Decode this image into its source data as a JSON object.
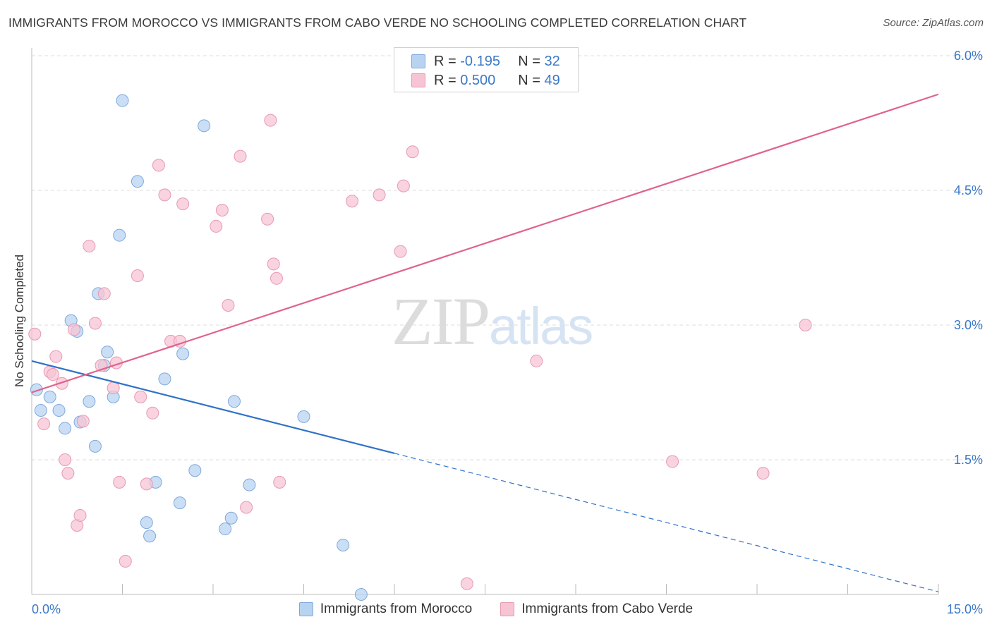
{
  "title": "IMMIGRANTS FROM MOROCCO VS IMMIGRANTS FROM CABO VERDE NO SCHOOLING COMPLETED CORRELATION CHART",
  "source": "Source: ZipAtlas.com",
  "watermark": {
    "zip": "ZIP",
    "atlas": "atlas"
  },
  "legend": {
    "morocco": {
      "r_label": "R = ",
      "r_value": "-0.195",
      "n_label": "N = ",
      "n_value": "32"
    },
    "cabo": {
      "r_label": "R = ",
      "r_value": "0.500",
      "n_label": "N = ",
      "n_value": "49"
    }
  },
  "colors": {
    "morocco_fill": "#b8d3f1",
    "morocco_stroke": "#7fa9db",
    "morocco_line": "#2f72c8",
    "cabo_fill": "#f7c4d4",
    "cabo_stroke": "#e79ab2",
    "cabo_line": "#e0628d",
    "tick_text": "#3a78c9",
    "grid": "#dddddd"
  },
  "chart_data": {
    "type": "scatter",
    "title": "IMMIGRANTS FROM MOROCCO VS IMMIGRANTS FROM CABO VERDE NO SCHOOLING COMPLETED CORRELATION CHART",
    "xlabel": "",
    "ylabel": "No Schooling Completed",
    "xlim": [
      0,
      15
    ],
    "ylim": [
      0,
      6
    ],
    "x_tick_labels": [
      "0.0%",
      "15.0%"
    ],
    "y_ticks": [
      1.5,
      3.0,
      4.5,
      6.0
    ],
    "y_tick_labels": [
      "1.5%",
      "3.0%",
      "4.5%",
      "6.0%"
    ],
    "grid": true,
    "legend_position": "top-center",
    "series": [
      {
        "name": "Immigrants from Morocco",
        "x": [
          0.15,
          0.3,
          0.65,
          0.55,
          0.75,
          0.8,
          0.95,
          1.05,
          1.1,
          1.2,
          1.35,
          1.25,
          1.5,
          1.45,
          1.75,
          1.95,
          1.9,
          2.05,
          2.2,
          2.5,
          2.45,
          2.7,
          2.85,
          3.2,
          3.3,
          3.35,
          3.6,
          4.5,
          5.15,
          5.45,
          0.08,
          0.45
        ],
        "y": [
          2.05,
          2.2,
          3.05,
          1.85,
          2.93,
          1.92,
          2.15,
          1.65,
          3.35,
          2.55,
          2.2,
          2.7,
          5.5,
          4.0,
          4.6,
          0.65,
          0.8,
          1.25,
          2.4,
          2.68,
          1.02,
          1.38,
          5.22,
          0.73,
          0.85,
          2.15,
          1.22,
          1.98,
          0.55,
          0.0,
          2.28,
          2.05
        ],
        "r": -0.195,
        "n": 32
      },
      {
        "name": "Immigrants from Cabo Verde",
        "x": [
          0.05,
          0.2,
          0.3,
          0.35,
          0.4,
          0.5,
          0.55,
          0.6,
          0.7,
          0.75,
          0.8,
          0.85,
          0.95,
          1.05,
          1.15,
          1.2,
          1.35,
          1.4,
          1.45,
          1.55,
          1.75,
          1.9,
          2.0,
          2.1,
          2.2,
          2.3,
          2.45,
          2.5,
          3.05,
          3.15,
          3.25,
          3.45,
          3.55,
          3.9,
          3.95,
          4.0,
          4.05,
          4.1,
          5.3,
          5.75,
          6.1,
          6.15,
          6.3,
          7.2,
          8.35,
          10.6,
          12.1,
          12.8,
          1.8
        ],
        "y": [
          2.9,
          1.9,
          2.48,
          2.45,
          2.65,
          2.35,
          1.5,
          1.35,
          2.95,
          0.77,
          0.88,
          1.93,
          3.88,
          3.02,
          2.55,
          3.35,
          2.3,
          2.58,
          1.25,
          0.37,
          3.55,
          1.23,
          2.02,
          4.78,
          4.45,
          2.82,
          2.82,
          4.35,
          4.1,
          4.28,
          3.22,
          4.88,
          0.97,
          4.18,
          5.28,
          3.68,
          3.52,
          1.25,
          4.38,
          4.45,
          3.82,
          4.55,
          4.93,
          0.12,
          2.6,
          1.48,
          1.35,
          3.0,
          2.2
        ],
        "r": 0.5,
        "n": 49
      }
    ],
    "trendlines": [
      {
        "series": "Immigrants from Morocco",
        "x1": 0,
        "y1": 2.6,
        "x2": 15,
        "y2": 0.03,
        "solid_until_x": 6.0
      },
      {
        "series": "Immigrants from Cabo Verde",
        "x1": 0,
        "y1": 2.25,
        "x2": 15,
        "y2": 5.57
      }
    ]
  }
}
